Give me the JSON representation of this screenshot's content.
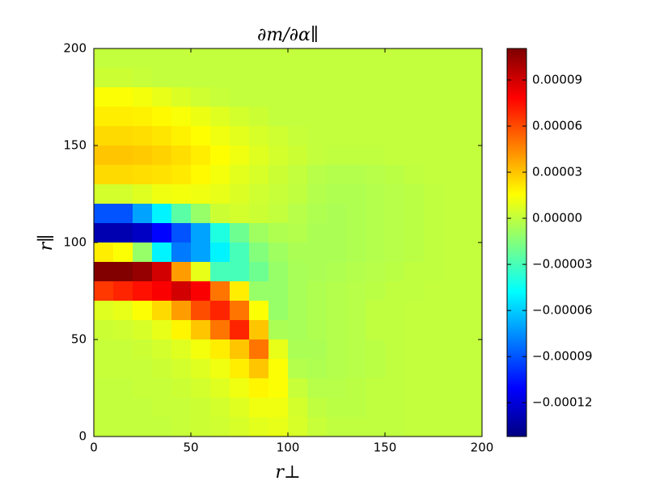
{
  "chart_data": {
    "type": "heatmap",
    "title": "∂m/∂α∥",
    "xlabel": "r⊥",
    "ylabel": "r∥",
    "xlim": [
      0,
      200
    ],
    "ylim": [
      0,
      200
    ],
    "xticks": [
      0,
      50,
      100,
      150,
      200
    ],
    "yticks": [
      0,
      50,
      100,
      150,
      200
    ],
    "colormap": "jet",
    "clim": [
      -0.000142,
      0.0001105
    ],
    "cticks": [
      {
        "value": 9e-05,
        "label": "0.00009"
      },
      {
        "value": 6e-05,
        "label": "0.00006"
      },
      {
        "value": 3e-05,
        "label": "0.00003"
      },
      {
        "value": 0,
        "label": "0.00000"
      },
      {
        "value": -3e-05,
        "label": "−0.00003"
      },
      {
        "value": -6e-05,
        "label": "−0.00006"
      },
      {
        "value": -9e-05,
        "label": "−0.00009"
      },
      {
        "value": -0.00012,
        "label": "−0.00012"
      }
    ],
    "z": [
      [
        1e-06,
        1e-06,
        1e-06,
        1e-06,
        1e-06,
        1e-06,
        1e-06,
        1e-06,
        1e-06,
        1e-06,
        1e-06,
        1e-06,
        1e-06,
        1e-06,
        1e-06,
        1e-06,
        1e-06,
        1e-06,
        1e-06,
        1e-06
      ],
      [
        3e-06,
        3e-06,
        2e-06,
        1e-06,
        1e-06,
        1e-06,
        1e-06,
        1e-06,
        1e-06,
        1e-06,
        1e-06,
        1e-06,
        1e-06,
        1e-06,
        1e-06,
        1e-06,
        1e-06,
        1e-06,
        1e-06,
        1e-06
      ],
      [
        1.5e-05,
        1.5e-05,
        1.3e-05,
        1e-05,
        7e-06,
        4e-06,
        2e-06,
        1e-06,
        1e-06,
        1e-06,
        1e-06,
        1e-06,
        1e-06,
        1e-06,
        1e-06,
        1e-06,
        1e-06,
        1e-06,
        1e-06,
        1e-06
      ],
      [
        2e-05,
        2e-05,
        1.9e-05,
        1.7e-05,
        1.4e-05,
        1.1e-05,
        8e-06,
        5e-06,
        3e-06,
        1e-06,
        1e-06,
        1e-06,
        1e-06,
        1e-06,
        1e-06,
        1e-06,
        1e-06,
        1e-06,
        1e-06,
        1e-06
      ],
      [
        2.5e-05,
        2.5e-05,
        2.4e-05,
        2.2e-05,
        1.9e-05,
        1.6e-05,
        1.2e-05,
        9e-06,
        6e-06,
        4e-06,
        2e-06,
        1e-06,
        1e-06,
        1e-06,
        1e-06,
        1e-06,
        1e-06,
        1e-06,
        1e-06,
        1e-06
      ],
      [
        3e-05,
        3e-05,
        2.9e-05,
        2.7e-05,
        2.4e-05,
        2e-05,
        1.6e-05,
        1.2e-05,
        8e-06,
        5e-06,
        3e-06,
        1e-06,
        0,
        0,
        0,
        1e-06,
        1e-06,
        1e-06,
        1e-06,
        1e-06
      ],
      [
        2.5e-05,
        2.5e-05,
        2.4e-05,
        2.3e-05,
        2.1e-05,
        1.7e-05,
        1.3e-05,
        9e-06,
        6e-06,
        3e-06,
        1e-06,
        -2e-06,
        -3e-06,
        -3e-06,
        -2e-06,
        -1e-06,
        0,
        1e-06,
        1e-06,
        1e-06
      ],
      [
        5e-06,
        5e-06,
        8e-06,
        1.2e-05,
        1.3e-05,
        1.2e-05,
        1e-05,
        7e-06,
        4e-06,
        2e-06,
        0,
        -3e-06,
        -4e-06,
        -4e-06,
        -3e-06,
        -2e-06,
        -1e-06,
        0,
        1e-06,
        1e-06
      ],
      [
        -9e-05,
        -9e-05,
        -7e-05,
        -5e-05,
        -2.5e-05,
        -1e-05,
        3e-06,
        5e-06,
        3e-06,
        1e-06,
        -2e-06,
        -4e-06,
        -5e-06,
        -4e-06,
        -3e-06,
        -2e-06,
        -1e-06,
        0,
        1e-06,
        1e-06
      ],
      [
        -0.00013,
        -0.00013,
        -0.000125,
        -0.00011,
        -9e-05,
        -7e-05,
        -4e-05,
        -2e-05,
        -8e-06,
        -4e-06,
        -3e-06,
        -5e-06,
        -5e-06,
        -4e-06,
        -3e-06,
        -2e-06,
        -1e-06,
        0,
        1e-06,
        1e-06
      ],
      [
        2e-05,
        1.5e-05,
        -1e-05,
        -5e-05,
        -8e-05,
        -7e-05,
        -5e-05,
        -3e-05,
        -1.5e-05,
        -8e-06,
        -5e-06,
        -5e-06,
        -5e-06,
        -4e-06,
        -3e-06,
        -2e-06,
        -1e-06,
        0,
        1e-06,
        1e-06
      ],
      [
        0.00011,
        0.00011,
        0.000105,
        9e-05,
        4e-05,
        1e-05,
        -3e-05,
        -3e-05,
        -2e-05,
        -1e-05,
        -6e-06,
        -5e-06,
        -4e-06,
        -3e-06,
        -2e-06,
        -1e-06,
        0,
        0,
        1e-06,
        1e-06
      ],
      [
        6.5e-05,
        7e-05,
        7.5e-05,
        8e-05,
        9e-05,
        8e-05,
        5e-05,
        2e-05,
        -1e-05,
        -1e-05,
        -6e-06,
        -4e-06,
        -3e-06,
        -2e-06,
        -1e-06,
        0,
        0,
        1e-06,
        1e-06,
        1e-06
      ],
      [
        8e-06,
        1e-05,
        1.5e-05,
        2.5e-05,
        4e-05,
        6e-05,
        7e-05,
        5e-05,
        1.5e-05,
        -1e-05,
        -6e-06,
        -4e-06,
        -3e-06,
        -2e-06,
        0,
        0,
        1e-06,
        1e-06,
        1e-06,
        1e-06
      ],
      [
        3e-06,
        4e-06,
        6e-06,
        1e-05,
        1.8e-05,
        3e-05,
        5e-05,
        7e-05,
        3e-05,
        -5e-06,
        -6e-06,
        -4e-06,
        -3e-06,
        -2e-06,
        0,
        0,
        1e-06,
        1e-06,
        1e-06,
        1e-06
      ],
      [
        2e-06,
        2e-06,
        3e-06,
        5e-06,
        8e-06,
        1.3e-05,
        2e-05,
        3e-05,
        5e-05,
        1e-05,
        -5e-06,
        -5e-06,
        -3e-06,
        -2e-06,
        -1e-06,
        0,
        1e-06,
        1e-06,
        1e-06,
        1e-06
      ],
      [
        2e-06,
        2e-06,
        2e-06,
        3e-06,
        5e-06,
        8e-06,
        1.2e-05,
        2e-05,
        3e-05,
        1.5e-05,
        -3e-06,
        -4e-06,
        -3e-06,
        -2e-06,
        -1e-06,
        0,
        1e-06,
        1e-06,
        1e-06,
        1e-06
      ],
      [
        1e-06,
        1e-06,
        2e-06,
        2e-06,
        3e-06,
        5e-06,
        8e-06,
        1.2e-05,
        1.8e-05,
        1.5e-05,
        2e-06,
        -2e-06,
        -2e-06,
        -1e-06,
        0,
        0,
        1e-06,
        1e-06,
        1e-06,
        1e-06
      ],
      [
        1e-06,
        1e-06,
        1e-06,
        2e-06,
        2e-06,
        3e-06,
        5e-06,
        8e-06,
        1.2e-05,
        1.2e-05,
        5e-06,
        0,
        -1e-06,
        -1e-06,
        0,
        0,
        1e-06,
        1e-06,
        1e-06,
        1e-06
      ],
      [
        1e-06,
        1e-06,
        1e-06,
        1e-06,
        2e-06,
        3e-06,
        4e-06,
        6e-06,
        9e-06,
        1e-05,
        6e-06,
        2e-06,
        0,
        0,
        0,
        0,
        1e-06,
        1e-06,
        1e-06,
        1e-06
      ]
    ]
  }
}
